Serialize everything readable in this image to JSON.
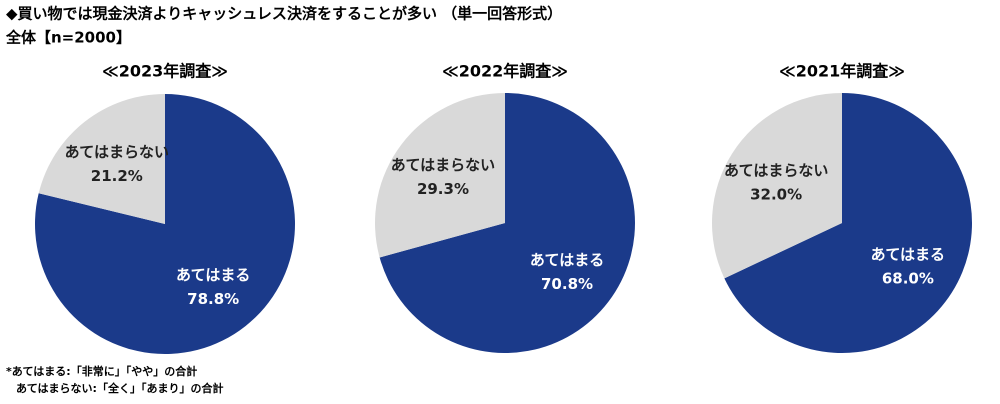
{
  "header": {
    "title": "◆買い物では現金決済よりキャッシュレス決済をすることが多い （単一回答形式）",
    "subtitle": "全体【n=2000】"
  },
  "footnotes": [
    "*あてはまる:「非常に」「やや」の合計",
    "あてはまらない:「全く」「あまり」の合計"
  ],
  "chart_data": [
    {
      "type": "pie",
      "title": "≪2023年調査≫",
      "categories": [
        "あてはまる",
        "あてはまらない"
      ],
      "values": [
        78.8,
        21.2
      ],
      "value_labels": [
        "78.8%",
        "21.2%"
      ],
      "colors": [
        "#1b3a8a",
        "#d9d9d9"
      ]
    },
    {
      "type": "pie",
      "title": "≪2022年調査≫",
      "categories": [
        "あてはまる",
        "あてはまらない"
      ],
      "values": [
        70.8,
        29.3
      ],
      "value_labels": [
        "70.8%",
        "29.3%"
      ],
      "colors": [
        "#1b3a8a",
        "#d9d9d9"
      ]
    },
    {
      "type": "pie",
      "title": "≪2021年調査≫",
      "categories": [
        "あてはまる",
        "あてはまらない"
      ],
      "values": [
        68.0,
        32.0
      ],
      "value_labels": [
        "68.0%",
        "32.0%"
      ],
      "colors": [
        "#1b3a8a",
        "#d9d9d9"
      ]
    }
  ]
}
